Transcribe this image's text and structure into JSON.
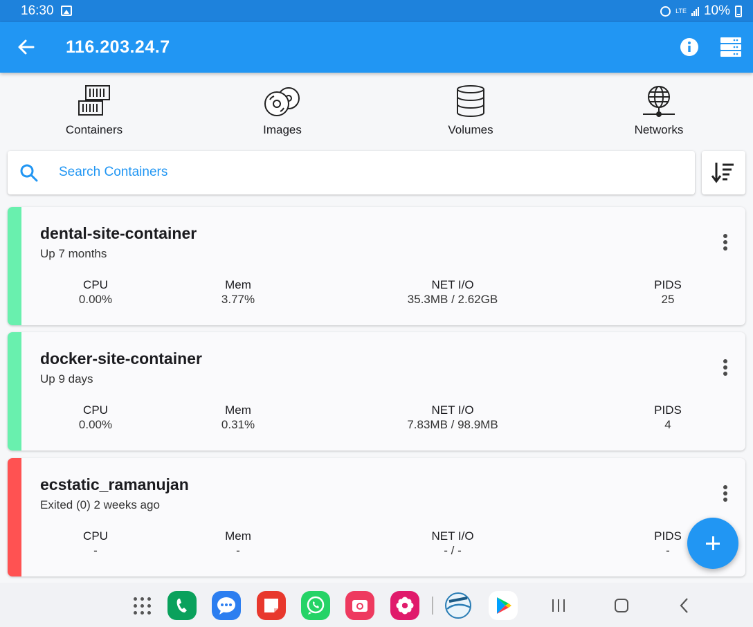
{
  "status_bar": {
    "time": "16:30",
    "network": "LTE",
    "battery": "10%",
    "icons": [
      "gallery-icon",
      "alarm-icon",
      "signal-icon",
      "battery-icon"
    ]
  },
  "app_bar": {
    "title": "116.203.24.7",
    "icons": [
      "back-arrow-icon",
      "info-icon",
      "server-list-icon"
    ]
  },
  "tabs": [
    {
      "label": "Containers",
      "icon": "container-icon"
    },
    {
      "label": "Images",
      "icon": "discs-icon"
    },
    {
      "label": "Volumes",
      "icon": "database-icon"
    },
    {
      "label": "Networks",
      "icon": "globe-network-icon"
    }
  ],
  "search": {
    "placeholder": "Search Containers",
    "icon": "search-icon",
    "sort_icon": "sort-icon"
  },
  "stat_labels": {
    "cpu": "CPU",
    "mem": "Mem",
    "net": "NET I/O",
    "pids": "PIDS"
  },
  "containers": [
    {
      "name": "dental-site-container",
      "status": "Up 7 months",
      "cpu": "0.00%",
      "mem": "3.77%",
      "net": "35.3MB / 2.62GB",
      "pids": "25",
      "state_color": "#69f0ae"
    },
    {
      "name": "docker-site-container",
      "status": "Up 9 days",
      "cpu": "0.00%",
      "mem": "0.31%",
      "net": "7.83MB / 98.9MB",
      "pids": "4",
      "state_color": "#69f0ae"
    },
    {
      "name": "ecstatic_ramanujan",
      "status": "Exited (0) 2 weeks ago",
      "cpu": "-",
      "mem": "-",
      "net": "- / -",
      "pids": "-",
      "state_color": "#ff5252"
    }
  ],
  "fab": {
    "icon": "plus-icon"
  },
  "colors": {
    "primary": "#2196f3",
    "status_bar": "#1e82dc",
    "running": "#69f0ae",
    "exited": "#ff5252"
  },
  "nav_bar": {
    "apps": [
      "app-drawer-icon",
      "phone-app-icon",
      "messages-app-icon",
      "notes-app-icon",
      "whatsapp-app-icon",
      "camera-app-icon",
      "flower-app-icon",
      "lifetime-app-icon",
      "play-store-icon"
    ],
    "buttons": [
      "recents-icon",
      "home-icon",
      "back-nav-icon"
    ]
  }
}
